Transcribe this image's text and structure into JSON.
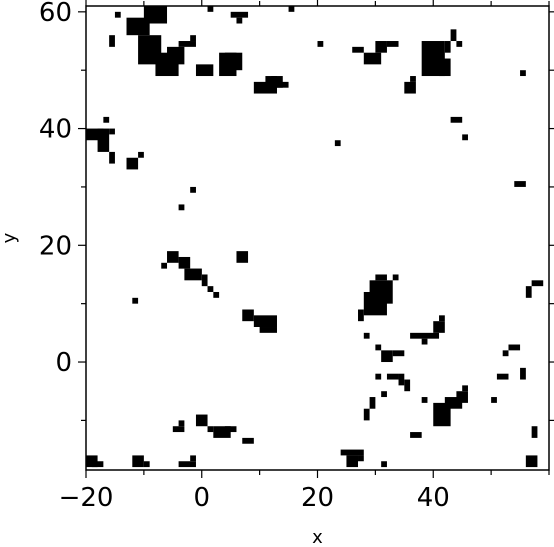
{
  "chart_data": {
    "type": "heatmap",
    "title": "",
    "xlabel": "x",
    "ylabel": "y",
    "xlim": [
      -20,
      60
    ],
    "ylim": [
      -18.5,
      61
    ],
    "cell_size": 1,
    "colormap": {
      "occupied": "#000000",
      "empty": "#ffffff"
    },
    "xticks": [
      -20,
      0,
      20,
      40
    ],
    "yticks": [
      0,
      20,
      40,
      60
    ],
    "xtick_labels": [
      "−20",
      "0",
      "20",
      "40"
    ],
    "ytick_labels": [
      "0",
      "20",
      "40",
      "60"
    ],
    "occupied_regions": [
      [
        -15,
        -14,
        59,
        60
      ],
      [
        -13,
        -9,
        56,
        59
      ],
      [
        -10,
        -6,
        58,
        61
      ],
      [
        -16,
        -15,
        54,
        56
      ],
      [
        -11,
        -7,
        51,
        56
      ],
      [
        -8,
        -4,
        49,
        53
      ],
      [
        -6,
        -3,
        51,
        54
      ],
      [
        -4,
        -1,
        54,
        55
      ],
      [
        -2,
        -1,
        55,
        56
      ],
      [
        -1,
        2,
        49,
        51
      ],
      [
        3,
        6,
        49,
        53
      ],
      [
        4,
        7,
        50,
        53
      ],
      [
        5,
        8,
        59,
        60
      ],
      [
        6,
        7,
        58,
        59
      ],
      [
        1,
        2,
        60,
        61
      ],
      [
        15,
        16,
        60,
        61
      ],
      [
        20,
        21,
        54,
        55
      ],
      [
        9,
        13,
        46,
        48
      ],
      [
        11,
        14,
        47,
        49
      ],
      [
        12,
        13,
        48,
        49
      ],
      [
        13,
        15,
        47,
        48
      ],
      [
        26,
        28,
        53,
        54
      ],
      [
        28,
        31,
        51,
        53
      ],
      [
        30,
        32,
        53,
        55
      ],
      [
        32,
        34,
        54,
        55
      ],
      [
        35,
        37,
        46,
        48
      ],
      [
        36,
        37,
        48,
        49
      ],
      [
        38,
        42,
        49,
        55
      ],
      [
        41,
        43,
        49,
        52
      ],
      [
        42,
        43,
        53,
        55
      ],
      [
        43,
        44,
        55,
        57
      ],
      [
        44,
        45,
        54,
        55
      ],
      [
        55,
        56,
        49,
        50
      ],
      [
        -20,
        -17,
        38,
        40
      ],
      [
        -18,
        -16,
        36,
        40
      ],
      [
        -17,
        -16,
        41,
        42
      ],
      [
        -16,
        -15,
        39,
        40
      ],
      [
        -16,
        -15,
        34,
        36
      ],
      [
        -13,
        -11,
        33,
        35
      ],
      [
        -11,
        -10,
        35,
        36
      ],
      [
        43,
        45,
        41,
        42
      ],
      [
        45,
        46,
        38,
        39
      ],
      [
        23,
        24,
        37,
        38
      ],
      [
        54,
        56,
        30,
        31
      ],
      [
        -2,
        -1,
        29,
        30
      ],
      [
        -4,
        -3,
        26,
        27
      ],
      [
        -6,
        -4,
        17,
        19
      ],
      [
        -7,
        -6,
        16,
        17
      ],
      [
        -4,
        -2,
        16,
        18
      ],
      [
        -3,
        0,
        14,
        16
      ],
      [
        -2,
        0,
        15,
        16
      ],
      [
        0,
        1,
        13,
        15
      ],
      [
        1,
        2,
        12,
        13
      ],
      [
        2,
        3,
        11,
        12
      ],
      [
        6,
        8,
        17,
        19
      ],
      [
        -12,
        -11,
        10,
        11
      ],
      [
        7,
        9,
        7,
        9
      ],
      [
        9,
        13,
        6,
        8
      ],
      [
        10,
        13,
        5,
        6
      ],
      [
        28,
        32,
        8,
        12
      ],
      [
        29,
        33,
        10,
        14
      ],
      [
        30,
        32,
        14,
        15
      ],
      [
        33,
        34,
        14,
        15
      ],
      [
        27,
        28,
        7,
        9
      ],
      [
        28,
        29,
        4,
        5
      ],
      [
        30,
        31,
        2,
        3
      ],
      [
        31,
        33,
        0,
        2
      ],
      [
        33,
        35,
        1,
        2
      ],
      [
        36,
        41,
        4,
        5
      ],
      [
        40,
        42,
        5,
        7
      ],
      [
        41,
        42,
        7,
        8
      ],
      [
        38,
        39,
        3,
        4
      ],
      [
        53,
        55,
        2,
        3
      ],
      [
        52,
        53,
        1,
        2
      ],
      [
        56,
        57,
        11,
        13
      ],
      [
        57,
        59,
        13,
        14
      ],
      [
        32,
        34,
        -3,
        -2
      ],
      [
        34,
        35,
        -4,
        -2
      ],
      [
        35,
        36,
        -5,
        -3
      ],
      [
        30,
        31,
        -3,
        -2
      ],
      [
        29,
        30,
        -8,
        -6
      ],
      [
        28,
        29,
        -10,
        -8
      ],
      [
        31,
        32,
        -6,
        -5
      ],
      [
        38,
        39,
        -7,
        -6
      ],
      [
        40,
        43,
        -11,
        -7
      ],
      [
        42,
        45,
        -8,
        -6
      ],
      [
        44,
        46,
        -7,
        -5
      ],
      [
        45,
        46,
        -5,
        -4
      ],
      [
        36,
        38,
        -13,
        -12
      ],
      [
        51,
        53,
        -3,
        -2
      ],
      [
        55,
        56,
        -3,
        -1
      ],
      [
        50,
        51,
        -7,
        -6
      ],
      [
        57,
        58,
        -13,
        -11
      ],
      [
        56,
        58,
        -18,
        -16
      ],
      [
        -1,
        1,
        -11,
        -9
      ],
      [
        1,
        2,
        -12,
        -11
      ],
      [
        2,
        5,
        -13,
        -11
      ],
      [
        4,
        6,
        -12,
        -11
      ],
      [
        -5,
        -3,
        -12,
        -11
      ],
      [
        -4,
        -3,
        -11,
        -10
      ],
      [
        7,
        9,
        -14,
        -13
      ],
      [
        -20,
        -18,
        -18,
        -16
      ],
      [
        -19,
        -17,
        -18,
        -17
      ],
      [
        -12,
        -10,
        -18,
        -16
      ],
      [
        -10,
        -9,
        -18,
        -17
      ],
      [
        -4,
        -1,
        -18,
        -17
      ],
      [
        -2,
        -1,
        -17,
        -16
      ],
      [
        24,
        28,
        -16,
        -15
      ],
      [
        25,
        27,
        -18,
        -16
      ],
      [
        27,
        28,
        -17,
        -16
      ],
      [
        31,
        32,
        -18,
        -17
      ]
    ]
  }
}
